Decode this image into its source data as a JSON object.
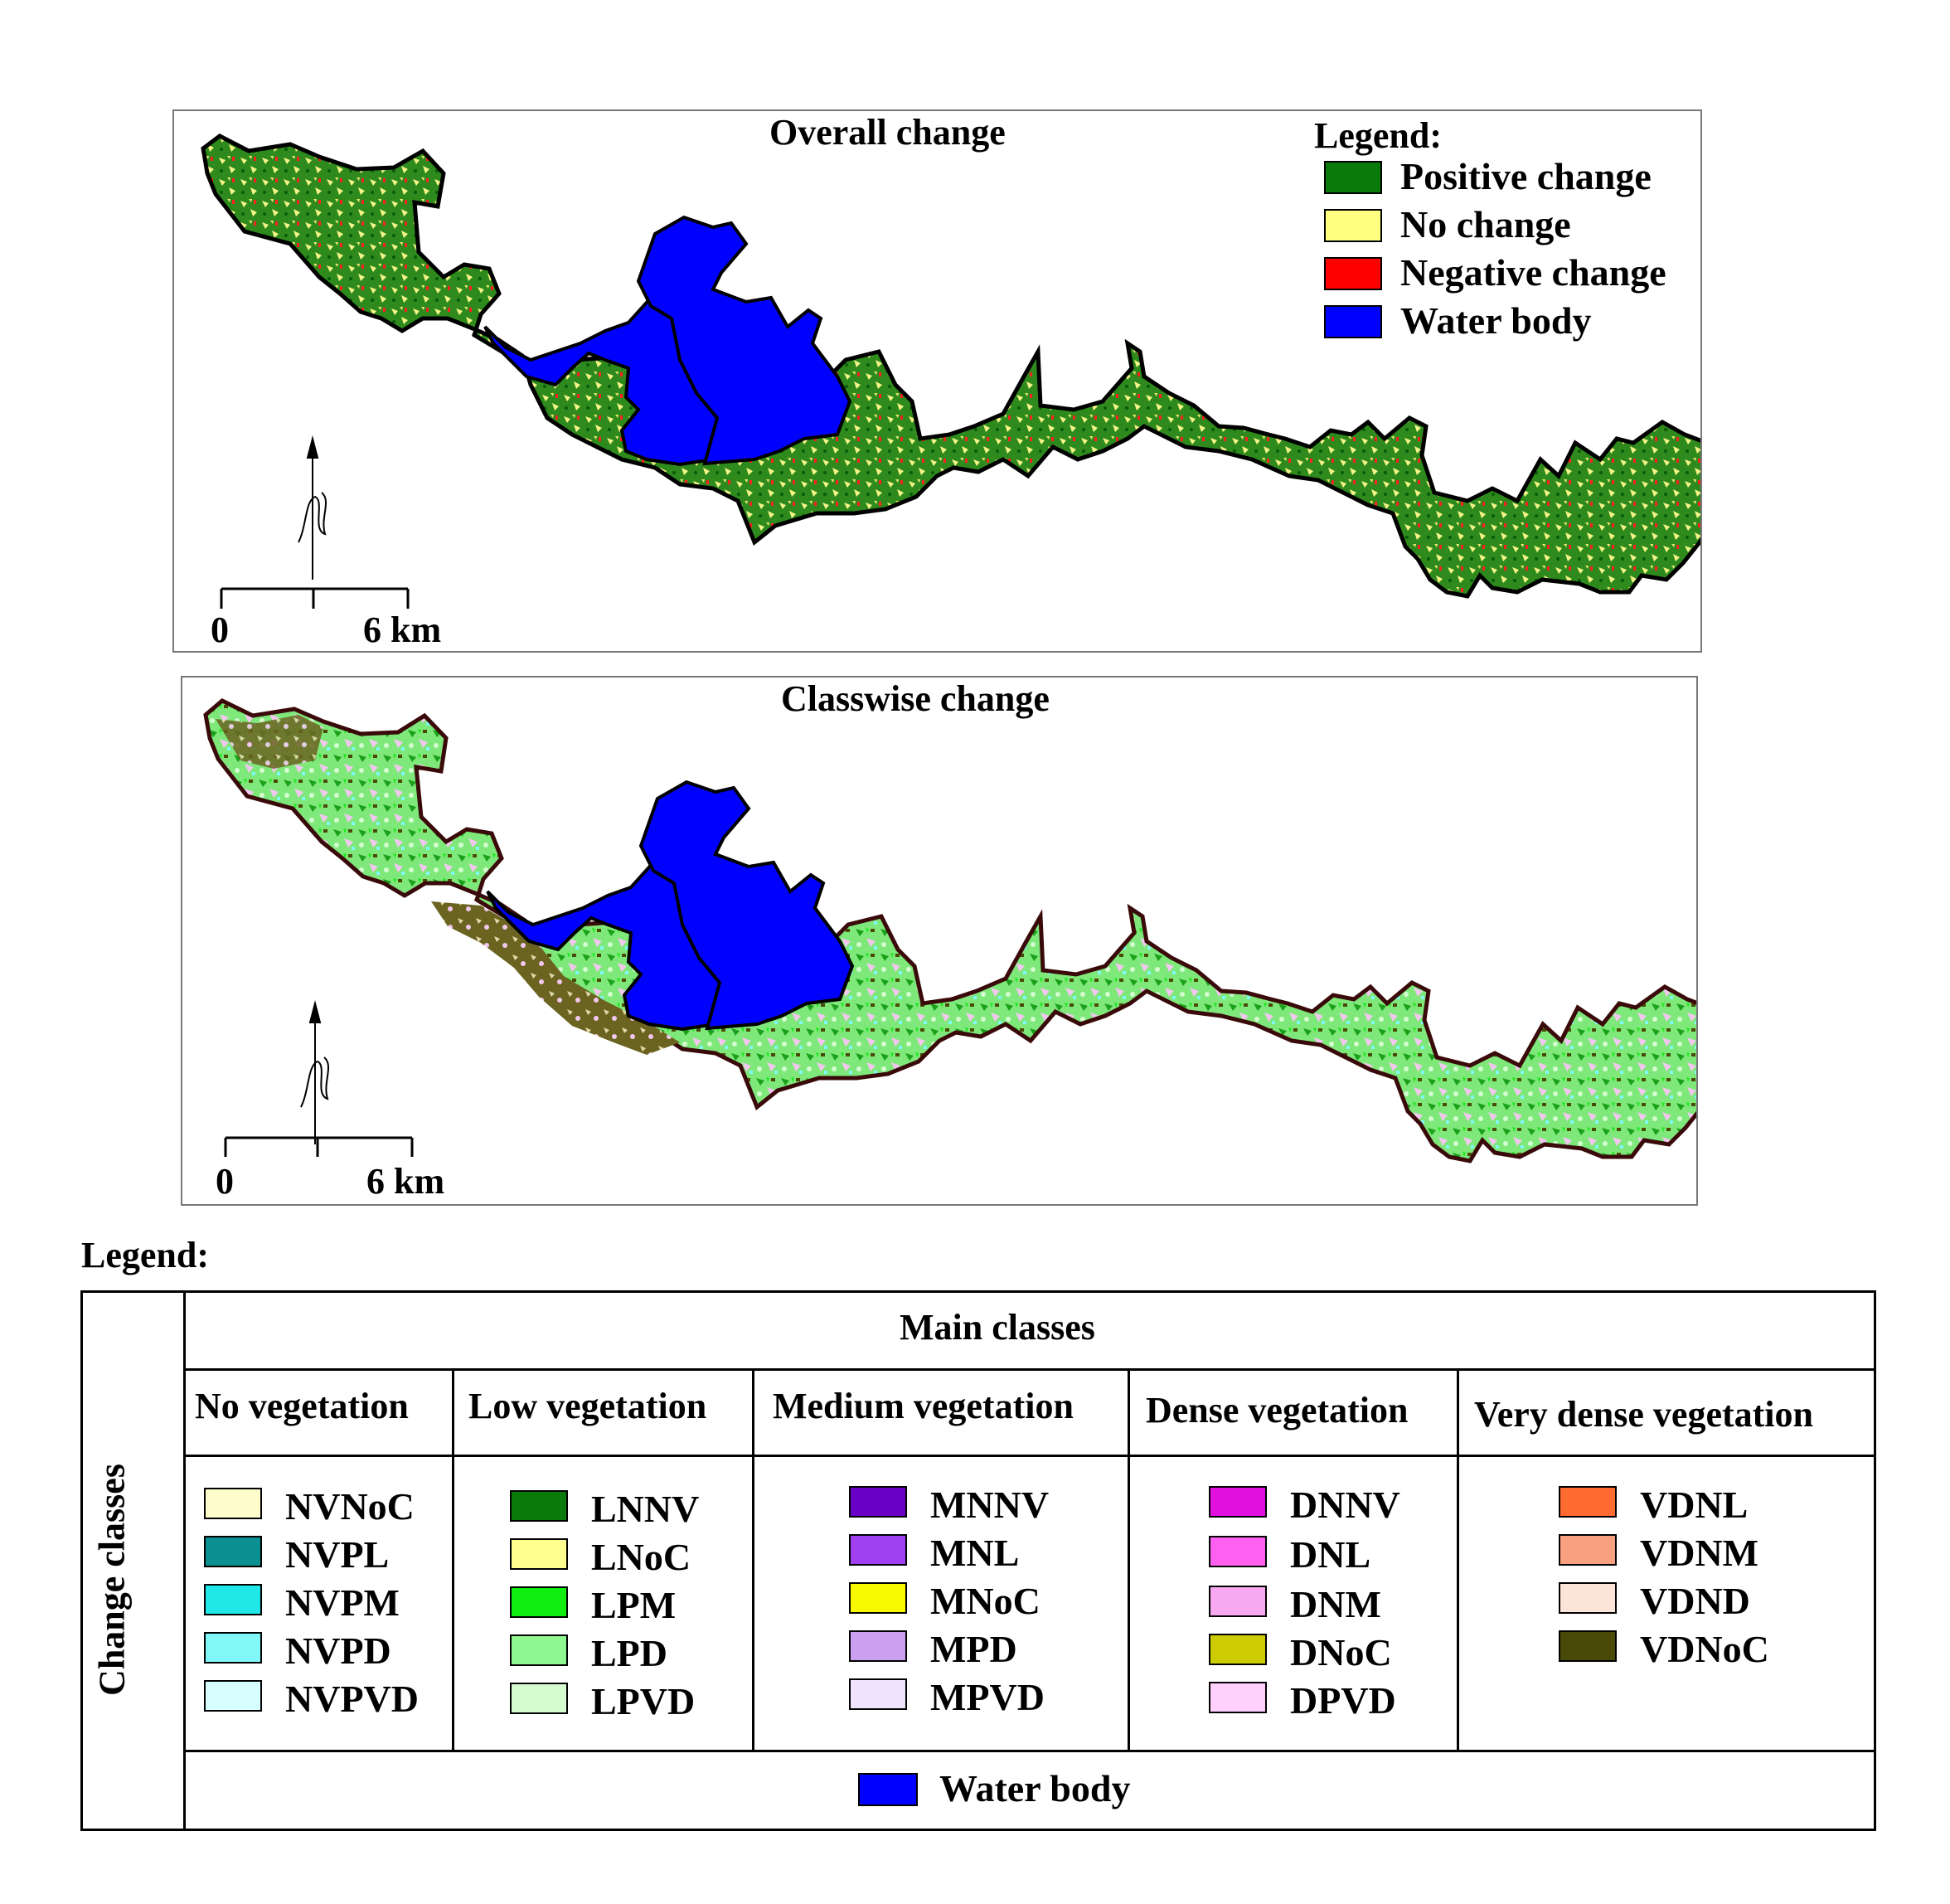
{
  "overall": {
    "title": "Overall change",
    "legend_title": "Legend:",
    "items": [
      {
        "label": "Positive change",
        "color": "#0a7a0a"
      },
      {
        "label": "No change",
        "color": "#ffff80"
      },
      {
        "label": "Negative change",
        "color": "#ff0000"
      },
      {
        "label": "Water body",
        "color": "#0000ff"
      }
    ],
    "scale": {
      "zero": "0",
      "end": "6 km"
    }
  },
  "classwise": {
    "title": "Classwise change",
    "scale": {
      "zero": "0",
      "end": "6 km"
    }
  },
  "legend": {
    "title": "Legend:",
    "row_header": "Change classes",
    "main_header": "Main classes",
    "groups": [
      {
        "name": "No vegetation",
        "items": [
          {
            "label": "NVNoC",
            "color": "#fffccc"
          },
          {
            "label": "NVPL",
            "color": "#0a9090"
          },
          {
            "label": "NVPM",
            "color": "#20e8e8"
          },
          {
            "label": "NVPD",
            "color": "#80f8f8"
          },
          {
            "label": "NVPVD",
            "color": "#d8ffff"
          }
        ]
      },
      {
        "name": "Low vegetation",
        "items": [
          {
            "label": "LNNV",
            "color": "#0a7a0a"
          },
          {
            "label": "LNoC",
            "color": "#ffff90"
          },
          {
            "label": "LPM",
            "color": "#10ee10"
          },
          {
            "label": "LPD",
            "color": "#90f890"
          },
          {
            "label": "LPVD",
            "color": "#d4fcd0"
          }
        ]
      },
      {
        "name": "Medium vegetation",
        "items": [
          {
            "label": "MNNV",
            "color": "#6a00c8"
          },
          {
            "label": "MNL",
            "color": "#a040f0"
          },
          {
            "label": "MNoC",
            "color": "#f8f800"
          },
          {
            "label": "MPD",
            "color": "#cca0f0"
          },
          {
            "label": "MPVD",
            "color": "#f0e4fc"
          }
        ]
      },
      {
        "name": "Dense vegetation",
        "items": [
          {
            "label": "DNNV",
            "color": "#e010e0"
          },
          {
            "label": "DNL",
            "color": "#ff60f0"
          },
          {
            "label": "DNM",
            "color": "#f8a8f0"
          },
          {
            "label": "DNoC",
            "color": "#cccc00"
          },
          {
            "label": "DPVD",
            "color": "#ffd0fc"
          }
        ]
      },
      {
        "name": "Very dense vegetation",
        "items": [
          {
            "label": "VDNL",
            "color": "#ff6a30"
          },
          {
            "label": "VDNM",
            "color": "#f8a080"
          },
          {
            "label": "VDND",
            "color": "#fce4d8"
          },
          {
            "label": "VDNoC",
            "color": "#4a4a08"
          }
        ]
      }
    ],
    "water": {
      "label": "Water body",
      "color": "#0000ff"
    }
  }
}
